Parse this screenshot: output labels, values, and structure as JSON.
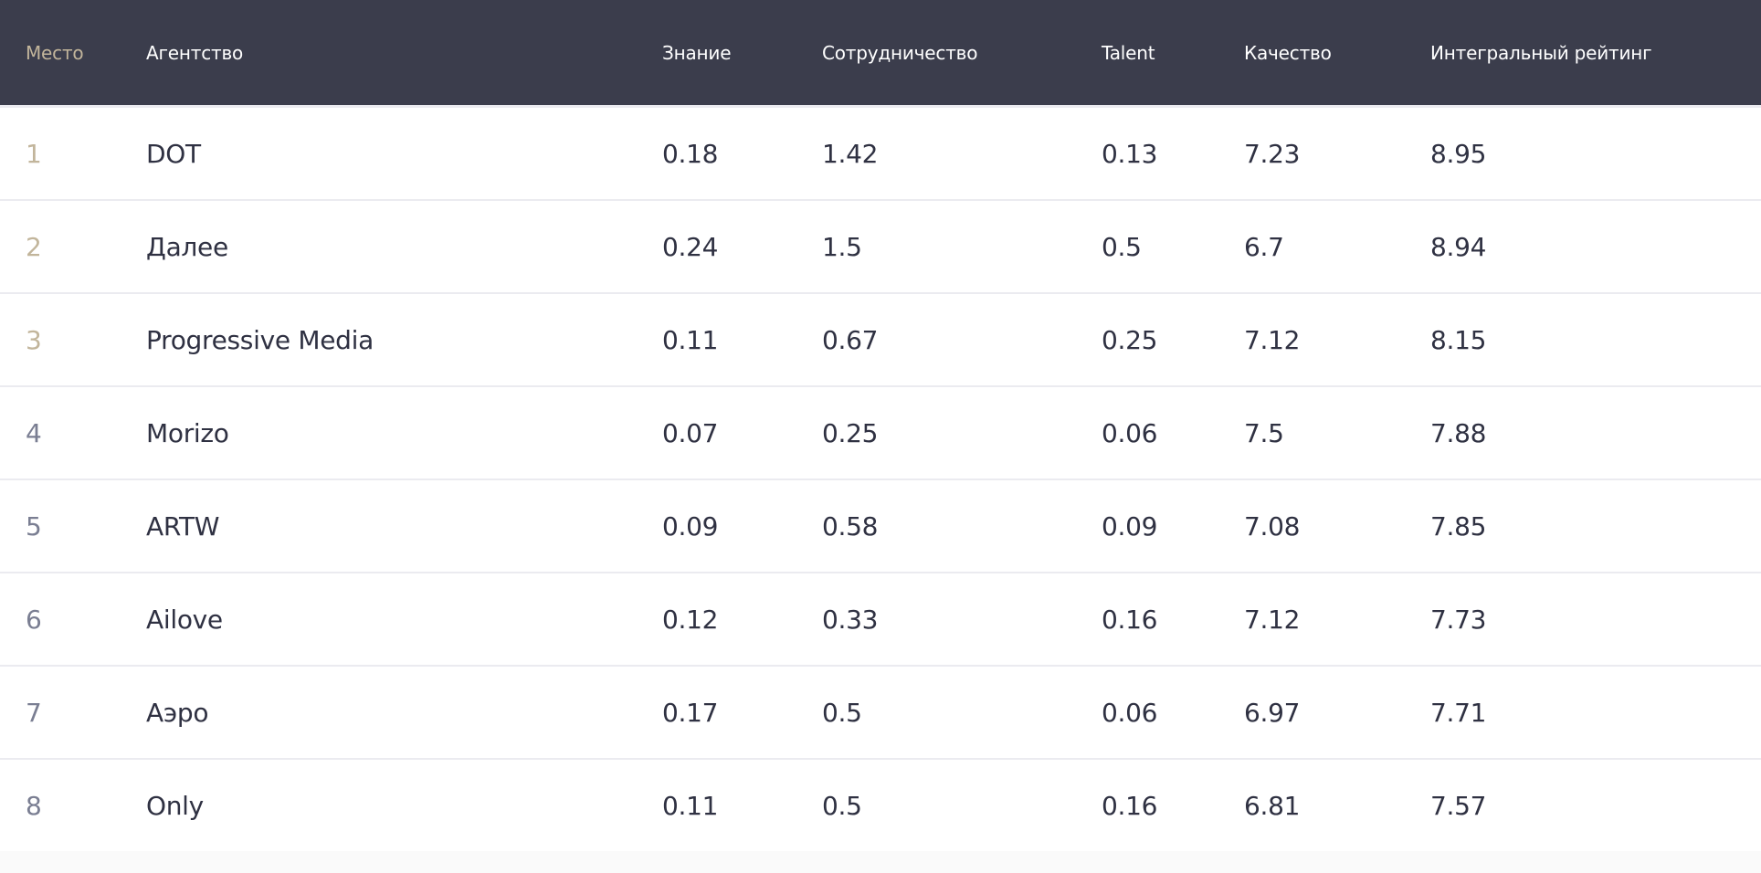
{
  "colors": {
    "header_bg": "#3b3d4c",
    "header_rank_label": "#c2b59b",
    "rank_top3": "#c2b59b",
    "rank_rest": "#7a7e92",
    "text": "#2f3142",
    "divider": "#ebebf0"
  },
  "table": {
    "columns": [
      "Место",
      "Агентство",
      "Знание",
      "Сотрудничество",
      "Talent",
      "Качество",
      "Интегральный рейтинг"
    ],
    "rows": [
      {
        "rank": "1",
        "agency": "DOT",
        "knowledge": "0.18",
        "cooperation": "1.42",
        "talent": "0.13",
        "quality": "7.23",
        "integral": "8.95"
      },
      {
        "rank": "2",
        "agency": "Далее",
        "knowledge": "0.24",
        "cooperation": "1.5",
        "talent": "0.5",
        "quality": "6.7",
        "integral": "8.94"
      },
      {
        "rank": "3",
        "agency": "Progressive Media",
        "knowledge": "0.11",
        "cooperation": "0.67",
        "talent": "0.25",
        "quality": "7.12",
        "integral": "8.15"
      },
      {
        "rank": "4",
        "agency": "Morizo",
        "knowledge": "0.07",
        "cooperation": "0.25",
        "talent": "0.06",
        "quality": "7.5",
        "integral": "7.88"
      },
      {
        "rank": "5",
        "agency": "ARTW",
        "knowledge": "0.09",
        "cooperation": "0.58",
        "talent": "0.09",
        "quality": "7.08",
        "integral": "7.85"
      },
      {
        "rank": "6",
        "agency": "Ailove",
        "knowledge": "0.12",
        "cooperation": "0.33",
        "talent": "0.16",
        "quality": "7.12",
        "integral": "7.73"
      },
      {
        "rank": "7",
        "agency": "Аэро",
        "knowledge": "0.17",
        "cooperation": "0.5",
        "talent": "0.06",
        "quality": "6.97",
        "integral": "7.71"
      },
      {
        "rank": "8",
        "agency": "Only",
        "knowledge": "0.11",
        "cooperation": "0.5",
        "talent": "0.16",
        "quality": "6.81",
        "integral": "7.57"
      }
    ]
  }
}
